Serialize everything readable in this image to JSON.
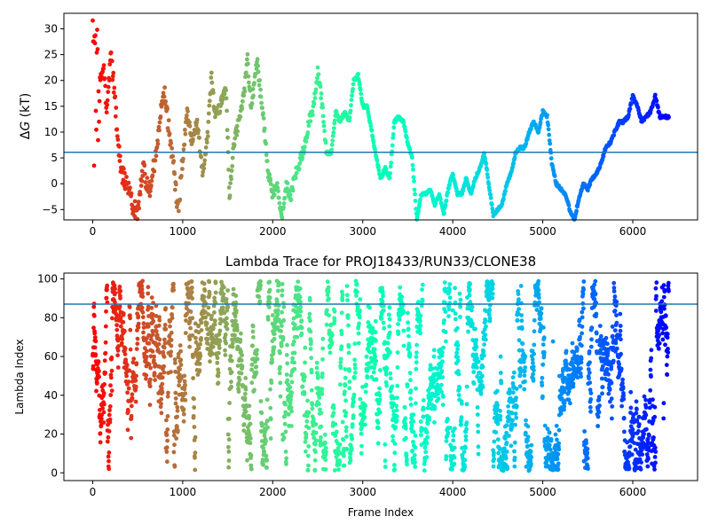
{
  "chart_data": [
    {
      "type": "scatter",
      "title": "",
      "xlabel": "",
      "ylabel": "ΔG (kT)",
      "ylabel_parts": {
        "delta": "Δ",
        "symbol": "G",
        "unit": " (kT)"
      },
      "xlim": [
        -320,
        6720
      ],
      "ylim": [
        -7,
        33
      ],
      "xticks": [
        0,
        1000,
        2000,
        3000,
        4000,
        5000,
        6000
      ],
      "yticks": [
        -5,
        0,
        5,
        10,
        15,
        20,
        25,
        30
      ],
      "hline": 6.1,
      "hline_color": "#1f77b4",
      "colormap": "rainbow",
      "frames": 6400,
      "path": [
        [
          0,
          22
        ],
        [
          40,
          27
        ],
        [
          80,
          20
        ],
        [
          120,
          23
        ],
        [
          160,
          14
        ],
        [
          200,
          25
        ],
        [
          240,
          18
        ],
        [
          280,
          8
        ],
        [
          320,
          2
        ],
        [
          380,
          0
        ],
        [
          440,
          -4
        ],
        [
          500,
          -6
        ],
        [
          560,
          4
        ],
        [
          620,
          -2
        ],
        [
          700,
          5
        ],
        [
          760,
          14
        ],
        [
          800,
          17
        ],
        [
          850,
          10
        ],
        [
          900,
          3
        ],
        [
          950,
          -6
        ],
        [
          1000,
          5
        ],
        [
          1050,
          14
        ],
        [
          1100,
          8
        ],
        [
          1160,
          12
        ],
        [
          1220,
          2
        ],
        [
          1280,
          10
        ],
        [
          1320,
          21
        ],
        [
          1360,
          13
        ],
        [
          1420,
          15
        ],
        [
          1480,
          19
        ],
        [
          1520,
          -3
        ],
        [
          1560,
          7
        ],
        [
          1620,
          12
        ],
        [
          1680,
          17
        ],
        [
          1720,
          24
        ],
        [
          1760,
          15
        ],
        [
          1800,
          20
        ],
        [
          1830,
          24
        ],
        [
          1860,
          18
        ],
        [
          1900,
          12
        ],
        [
          1950,
          2
        ],
        [
          2000,
          -2
        ],
        [
          2050,
          0
        ],
        [
          2100,
          -7
        ],
        [
          2150,
          0
        ],
        [
          2200,
          -3
        ],
        [
          2250,
          2
        ],
        [
          2300,
          4
        ],
        [
          2350,
          7
        ],
        [
          2400,
          12
        ],
        [
          2450,
          14
        ],
        [
          2500,
          22
        ],
        [
          2550,
          15
        ],
        [
          2600,
          6
        ],
        [
          2650,
          6
        ],
        [
          2700,
          14
        ],
        [
          2750,
          12
        ],
        [
          2800,
          14
        ],
        [
          2850,
          12
        ],
        [
          2900,
          20
        ],
        [
          2950,
          21
        ],
        [
          3000,
          15
        ],
        [
          3050,
          15
        ],
        [
          3100,
          10
        ],
        [
          3150,
          5
        ],
        [
          3200,
          1
        ],
        [
          3250,
          3
        ],
        [
          3300,
          1
        ],
        [
          3350,
          12
        ],
        [
          3400,
          13
        ],
        [
          3450,
          12
        ],
        [
          3500,
          8
        ],
        [
          3550,
          5
        ],
        [
          3600,
          -7
        ],
        [
          3650,
          -2
        ],
        [
          3700,
          -2
        ],
        [
          3750,
          -1
        ],
        [
          3800,
          -4
        ],
        [
          3850,
          -2
        ],
        [
          3900,
          -6
        ],
        [
          3950,
          -1
        ],
        [
          4000,
          2
        ],
        [
          4050,
          -2
        ],
        [
          4100,
          -2
        ],
        [
          4150,
          1
        ],
        [
          4200,
          -2
        ],
        [
          4250,
          1
        ],
        [
          4300,
          3
        ],
        [
          4350,
          6
        ],
        [
          4400,
          0
        ],
        [
          4450,
          -6
        ],
        [
          4500,
          -5
        ],
        [
          4550,
          -4
        ],
        [
          4600,
          0
        ],
        [
          4650,
          2
        ],
        [
          4700,
          6
        ],
        [
          4750,
          7
        ],
        [
          4800,
          7
        ],
        [
          4850,
          10
        ],
        [
          4900,
          12
        ],
        [
          4950,
          10
        ],
        [
          5000,
          14
        ],
        [
          5050,
          13
        ],
        [
          5100,
          4
        ],
        [
          5150,
          0
        ],
        [
          5200,
          -1
        ],
        [
          5250,
          -2
        ],
        [
          5300,
          -5
        ],
        [
          5350,
          -7
        ],
        [
          5400,
          -3
        ],
        [
          5450,
          0
        ],
        [
          5500,
          -1
        ],
        [
          5550,
          1
        ],
        [
          5600,
          2
        ],
        [
          5650,
          4
        ],
        [
          5700,
          7
        ],
        [
          5750,
          8
        ],
        [
          5800,
          10
        ],
        [
          5850,
          12
        ],
        [
          5900,
          12
        ],
        [
          5950,
          13
        ],
        [
          6000,
          17
        ],
        [
          6050,
          15
        ],
        [
          6100,
          12
        ],
        [
          6150,
          13
        ],
        [
          6200,
          14
        ],
        [
          6250,
          17
        ],
        [
          6300,
          13
        ],
        [
          6400,
          13
        ]
      ],
      "early_y_range": [
        0,
        33
      ],
      "early_frames": 80
    },
    {
      "type": "scatter",
      "title": "Lambda Trace for PROJ18433/RUN33/CLONE38",
      "xlabel": "Frame Index",
      "ylabel": "Lambda Index",
      "xlim": [
        -320,
        6720
      ],
      "ylim": [
        -4,
        103
      ],
      "xticks": [
        0,
        1000,
        2000,
        3000,
        4000,
        5000,
        6000
      ],
      "yticks": [
        0,
        20,
        40,
        60,
        80,
        100
      ],
      "hline": 87,
      "hline_color": "#1f77b4",
      "colormap": "rainbow",
      "frames": 6400,
      "lambda_range": [
        1,
        99
      ]
    }
  ]
}
